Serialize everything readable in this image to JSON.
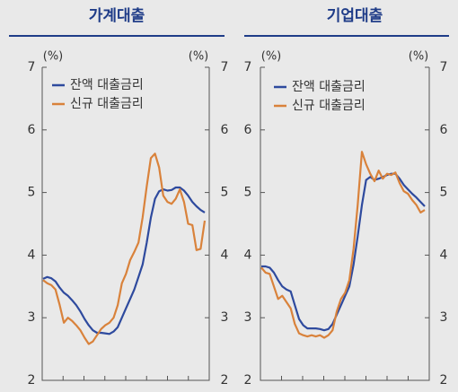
{
  "chart_data": [
    {
      "type": "line",
      "title": "가계대출",
      "y_label": "(%)",
      "y2_label": "(%)",
      "ylim": [
        2,
        7
      ],
      "yticks": [
        2,
        3,
        4,
        5,
        6,
        7
      ],
      "y2lim": [
        2,
        7
      ],
      "y2ticks": [
        2,
        3,
        4,
        5,
        6,
        7
      ],
      "series": [
        {
          "name": "잔액 대출금리",
          "color": "#2e4a9e",
          "values": [
            3.62,
            3.65,
            3.63,
            3.58,
            3.48,
            3.4,
            3.35,
            3.28,
            3.2,
            3.1,
            2.98,
            2.88,
            2.8,
            2.76,
            2.76,
            2.75,
            2.74,
            2.78,
            2.85,
            3.0,
            3.15,
            3.3,
            3.45,
            3.65,
            3.85,
            4.2,
            4.6,
            4.9,
            5.02,
            5.05,
            5.03,
            5.04,
            5.08,
            5.08,
            5.03,
            4.95,
            4.85,
            4.78,
            4.72,
            4.68
          ]
        },
        {
          "name": "신규 대출금리",
          "color": "#d9823b",
          "values": [
            3.6,
            3.55,
            3.52,
            3.45,
            3.2,
            2.92,
            3.0,
            2.95,
            2.88,
            2.8,
            2.68,
            2.58,
            2.62,
            2.72,
            2.82,
            2.88,
            2.92,
            3.0,
            3.2,
            3.55,
            3.7,
            3.92,
            4.05,
            4.2,
            4.6,
            5.1,
            5.55,
            5.62,
            5.4,
            4.95,
            4.85,
            4.82,
            4.9,
            5.05,
            4.85,
            4.5,
            4.48,
            4.08,
            4.1,
            4.55
          ]
        }
      ]
    },
    {
      "type": "line",
      "title": "기업대출",
      "y_label": "(%)",
      "y2_label": "(%)",
      "ylim": [
        2,
        7
      ],
      "yticks": [
        2,
        3,
        4,
        5,
        6,
        7
      ],
      "y2lim": [
        2,
        7
      ],
      "y2ticks": [
        2,
        3,
        4,
        5,
        6,
        7
      ],
      "series": [
        {
          "name": "잔액 대출금리",
          "color": "#2e4a9e",
          "values": [
            3.82,
            3.82,
            3.8,
            3.72,
            3.6,
            3.5,
            3.45,
            3.42,
            3.2,
            2.98,
            2.88,
            2.83,
            2.83,
            2.83,
            2.82,
            2.8,
            2.82,
            2.9,
            3.05,
            3.2,
            3.35,
            3.5,
            3.85,
            4.3,
            4.8,
            5.2,
            5.25,
            5.2,
            5.22,
            5.25,
            5.28,
            5.3,
            5.3,
            5.22,
            5.12,
            5.05,
            4.98,
            4.92,
            4.85,
            4.78
          ]
        },
        {
          "name": "신규 대출금리",
          "color": "#d9823b",
          "values": [
            3.8,
            3.72,
            3.7,
            3.5,
            3.3,
            3.35,
            3.25,
            3.15,
            2.9,
            2.75,
            2.72,
            2.7,
            2.72,
            2.7,
            2.72,
            2.68,
            2.72,
            2.8,
            3.1,
            3.3,
            3.4,
            3.6,
            4.1,
            4.8,
            5.65,
            5.45,
            5.3,
            5.18,
            5.35,
            5.22,
            5.3,
            5.28,
            5.32,
            5.15,
            5.02,
            4.98,
            4.88,
            4.8,
            4.68,
            4.72
          ]
        }
      ]
    }
  ]
}
